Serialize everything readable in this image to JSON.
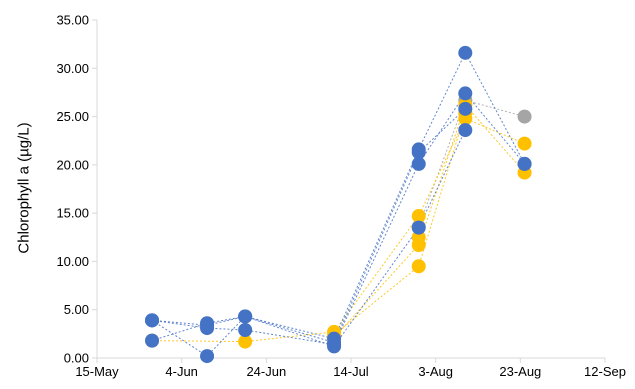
{
  "chart_data": {
    "type": "scatter",
    "title": "",
    "xlabel": "",
    "ylabel": "Chlorophyll a (µg/L)",
    "ylim": [
      0,
      35
    ],
    "yticks": [
      "0.00",
      "5.00",
      "10.00",
      "15.00",
      "20.00",
      "25.00",
      "30.00",
      "35.00"
    ],
    "xlim": [
      "15-May",
      "12-Sep"
    ],
    "xticks": [
      "15-May",
      "4-Jun",
      "24-Jun",
      "14-Jul",
      "3-Aug",
      "23-Aug",
      "12-Sep"
    ],
    "grid": false,
    "colors": {
      "blue": "#4472C4",
      "orange": "#FFC000",
      "gray": "#A5A5A5"
    },
    "series": [
      {
        "color": "blue",
        "points": [
          [
            "28-May",
            1.8
          ],
          [
            "10-Jun",
            3.6
          ],
          [
            "19-Jun",
            4.3
          ],
          [
            "10-Jul",
            2.0
          ],
          [
            "30-Jul",
            21.6
          ],
          [
            "10-Aug",
            31.6
          ],
          [
            "24-Aug",
            20.1
          ]
        ]
      },
      {
        "color": "blue",
        "points": [
          [
            "28-May",
            3.9
          ],
          [
            "10-Jun",
            3.1
          ],
          [
            "19-Jun",
            2.9
          ],
          [
            "10-Jul",
            1.4
          ],
          [
            "30-Jul",
            20.1
          ],
          [
            "10-Aug",
            27.4
          ],
          [
            "24-Aug",
            20.1
          ]
        ]
      },
      {
        "color": "blue",
        "points": [
          [
            "28-May",
            3.9
          ],
          [
            "10-Jun",
            0.2
          ],
          [
            "19-Jun",
            4.3
          ],
          [
            "10-Jul",
            1.6
          ],
          [
            "30-Jul",
            21.3
          ],
          [
            "10-Aug",
            25.8
          ]
        ]
      },
      {
        "color": "blue",
        "points": [
          [
            "28-May",
            3.9
          ],
          [
            "10-Jun",
            3.4
          ],
          [
            "19-Jun",
            4.3
          ],
          [
            "10-Jul",
            1.2
          ],
          [
            "30-Jul",
            13.5
          ],
          [
            "10-Aug",
            23.6
          ]
        ]
      },
      {
        "color": "orange",
        "points": [
          [
            "28-May",
            1.8
          ],
          [
            "19-Jun",
            1.7
          ],
          [
            "10-Jul",
            2.7
          ],
          [
            "30-Jul",
            14.7
          ],
          [
            "10-Aug",
            24.8
          ],
          [
            "24-Aug",
            22.2
          ]
        ]
      },
      {
        "color": "orange",
        "points": [
          [
            "10-Jul",
            2.1
          ],
          [
            "30-Jul",
            11.7
          ],
          [
            "10-Aug",
            26.2
          ],
          [
            "24-Aug",
            19.2
          ]
        ]
      },
      {
        "color": "orange",
        "points": [
          [
            "10-Jul",
            2.4
          ],
          [
            "30-Jul",
            9.5
          ],
          [
            "10-Aug",
            25.4
          ]
        ]
      },
      {
        "color": "orange",
        "points": [
          [
            "30-Jul",
            12.5
          ]
        ]
      },
      {
        "color": "gray",
        "points": [
          [
            "30-Jul",
            13.6
          ],
          [
            "10-Aug",
            26.7
          ],
          [
            "24-Aug",
            25.0
          ]
        ]
      }
    ]
  }
}
